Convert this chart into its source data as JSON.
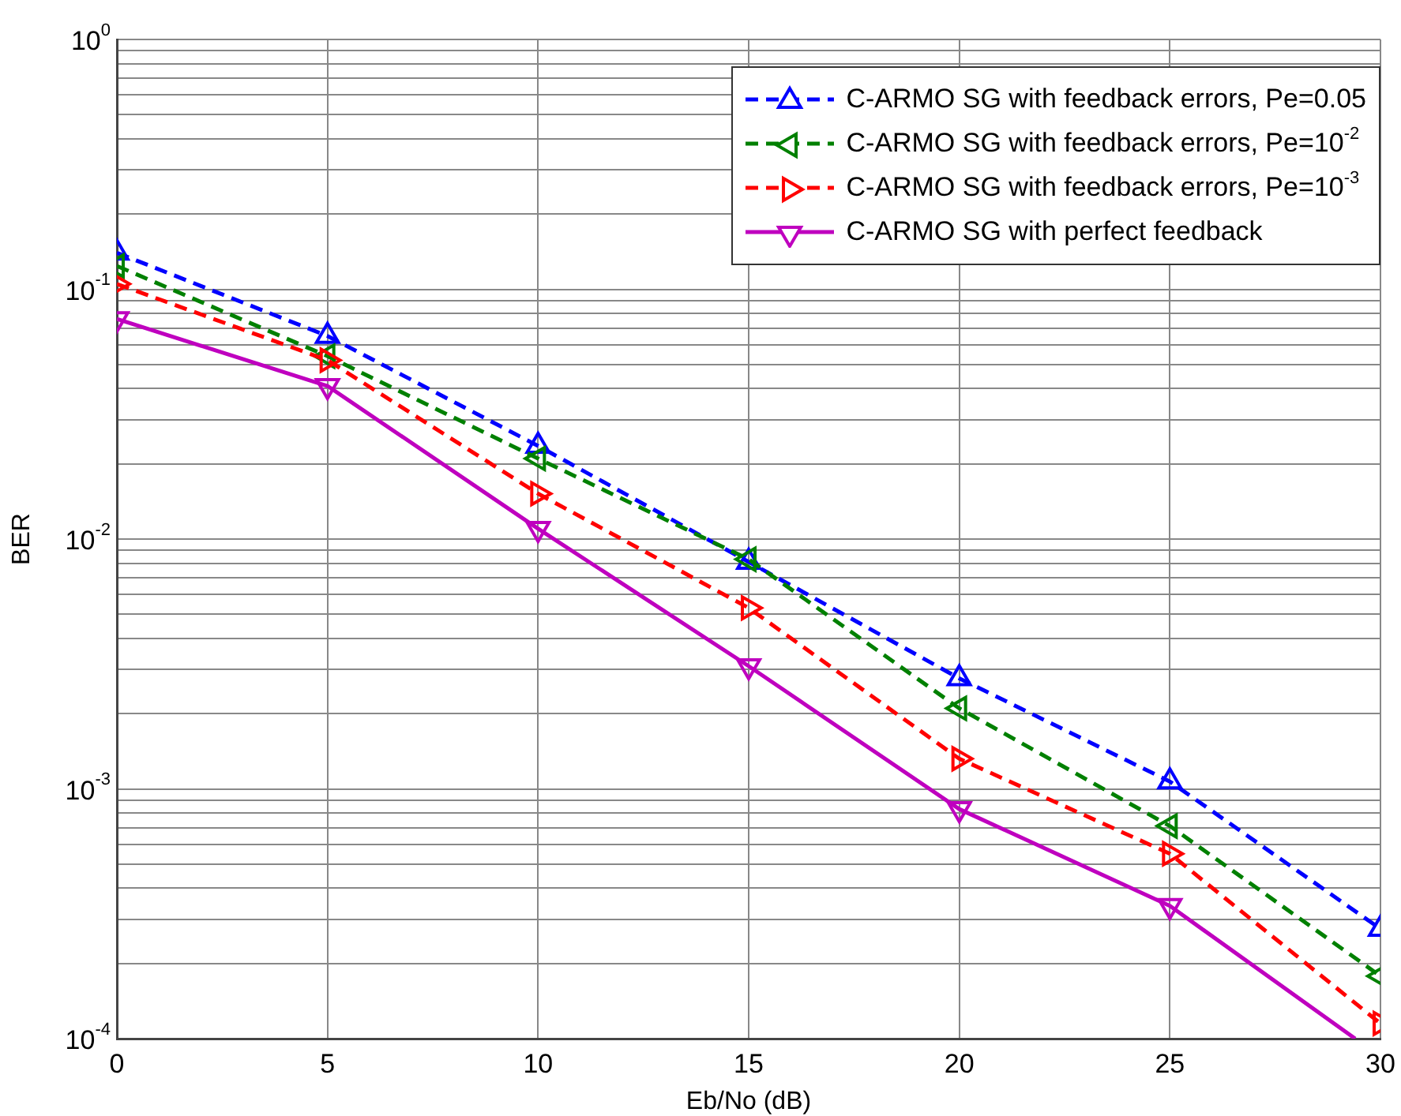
{
  "chart_data": {
    "type": "line",
    "xlabel": "Eb/No (dB)",
    "ylabel": "BER",
    "log": "y",
    "grid": true,
    "legend": "top right",
    "marker": "triangle",
    "x": [
      0,
      5,
      10,
      15,
      20,
      25,
      30
    ],
    "xlim": [
      0,
      30
    ],
    "xticks": [
      0,
      5,
      10,
      15,
      20,
      25,
      30
    ],
    "ylim": [
      0.0001,
      1
    ],
    "yticks": [
      {
        "value": 0.0001,
        "label": "10$^{-4}$"
      },
      {
        "value": 0.0002,
        "label": null
      },
      {
        "value": 0.0003,
        "label": null
      },
      {
        "value": 0.0004,
        "label": null
      },
      {
        "value": 0.0005,
        "label": null
      },
      {
        "value": 0.0006,
        "label": null
      },
      {
        "value": 0.0007,
        "label": null
      },
      {
        "value": 0.0008,
        "label": null
      },
      {
        "value": 0.0009,
        "label": null
      },
      {
        "value": 0.001,
        "label": "10$^{-3}$"
      },
      {
        "value": 0.002,
        "label": null
      },
      {
        "value": 0.003,
        "label": null
      },
      {
        "value": 0.004,
        "label": null
      },
      {
        "value": 0.005,
        "label": null
      },
      {
        "value": 0.006,
        "label": null
      },
      {
        "value": 0.007,
        "label": null
      },
      {
        "value": 0.008,
        "label": null
      },
      {
        "value": 0.009,
        "label": null
      },
      {
        "value": 0.01,
        "label": "10$^{-2}$"
      },
      {
        "value": 0.02,
        "label": null
      },
      {
        "value": 0.03,
        "label": null
      },
      {
        "value": 0.04,
        "label": null
      },
      {
        "value": 0.05,
        "label": null
      },
      {
        "value": 0.06,
        "label": null
      },
      {
        "value": 0.07,
        "label": null
      },
      {
        "value": 0.08,
        "label": null
      },
      {
        "value": 0.09,
        "label": null
      },
      {
        "value": 0.1,
        "label": "10$^{-1}$"
      },
      {
        "value": 0.2,
        "label": null
      },
      {
        "value": 0.3,
        "label": null
      },
      {
        "value": 0.4,
        "label": null
      },
      {
        "value": 0.5,
        "label": null
      },
      {
        "value": 0.6,
        "label": null
      },
      {
        "value": 0.7,
        "label": null
      },
      {
        "value": 0.8,
        "label": null
      },
      {
        "value": 0.9,
        "label": null
      },
      {
        "value": 1,
        "label": "10$^{0}$"
      }
    ],
    "series": [
      {
        "name": "C-ARMO SG with feedback errors, Pe=0.05",
        "color": "#0000ff",
        "line_style": "dashed",
        "values": [
          0.14,
          0.065,
          0.0236,
          0.0081,
          0.00277,
          0.00107,
          0.000275
        ]
      },
      {
        "name": "C-ARMO SG with feedback errors, Pe=10$^{-2}$",
        "color": "#008000",
        "line_style": "dashed",
        "values": [
          0.124,
          0.054,
          0.021,
          0.0083,
          0.0021,
          0.00071,
          0.000178
        ]
      },
      {
        "name": "C-ARMO SG with feedback errors, Pe=10$^{-3}$",
        "color": "#ff0000",
        "line_style": "dashed",
        "values": [
          0.105,
          0.052,
          0.0152,
          0.0053,
          0.00132,
          0.00055,
          0.000115
        ]
      },
      {
        "name": "C-ARMO SG with perfect feedback",
        "color": "#bf00bf",
        "line_style": "solid",
        "x": [
          0,
          5,
          10,
          15,
          20,
          25,
          29.4
        ],
        "values": [
          0.076,
          0.041,
          0.011,
          0.0031,
          0.00083,
          0.00034,
          0.0001
        ]
      }
    ]
  }
}
